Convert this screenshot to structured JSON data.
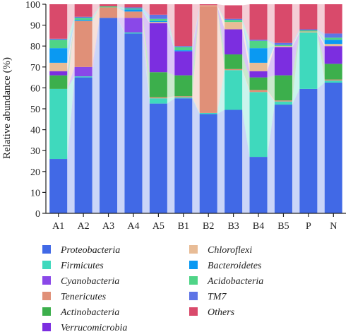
{
  "chart_data": {
    "type": "bar",
    "stacked": true,
    "title": "",
    "xlabel": "",
    "ylabel": "Relative abundance (%)",
    "ylim": [
      0,
      100
    ],
    "yticks": [
      0,
      10,
      20,
      30,
      40,
      50,
      60,
      70,
      80,
      90,
      100
    ],
    "categories": [
      "A1",
      "A2",
      "A3",
      "A4",
      "A5",
      "B1",
      "B2",
      "B3",
      "B4",
      "B5",
      "P",
      "N"
    ],
    "legend_placement": "bottom",
    "series": [
      {
        "name": "Proteobacteria",
        "color": "#4169e6",
        "values": [
          26,
          65,
          93.5,
          86,
          52.5,
          55,
          47.5,
          49.5,
          27,
          52,
          59.5,
          62.5
        ]
      },
      {
        "name": "Firmicutes",
        "color": "#3fd9bd",
        "values": [
          33.5,
          0.5,
          0,
          0.5,
          2.5,
          0.5,
          0.5,
          19,
          31,
          1.5,
          27,
          1
        ]
      },
      {
        "name": "Cyanobacteria",
        "color": "#8a48e8",
        "values": [
          0,
          4.5,
          0,
          7,
          0,
          0,
          0,
          0,
          0,
          0,
          0,
          0
        ]
      },
      {
        "name": "Tenericutes",
        "color": "#e09078",
        "values": [
          0,
          22,
          5,
          3,
          0.5,
          0.5,
          51,
          0.5,
          1,
          0.5,
          0,
          0.5
        ]
      },
      {
        "name": "Actinobacteria",
        "color": "#3caf4c",
        "values": [
          6.5,
          0,
          0,
          0,
          12,
          10,
          0,
          7,
          6,
          12,
          0,
          7.5
        ]
      },
      {
        "name": "Verrucomicrobia",
        "color": "#7c2ee0",
        "values": [
          2,
          0,
          0,
          0,
          23.5,
          11.5,
          0,
          12,
          3,
          13.5,
          0,
          8.5
        ]
      },
      {
        "name": "Chloroflexi",
        "color": "#e8bc96",
        "values": [
          4,
          0,
          0,
          0,
          0.5,
          0,
          0.5,
          3.5,
          4,
          0.5,
          0.5,
          1
        ]
      },
      {
        "name": "Bacteroidetes",
        "color": "#0a99f2",
        "values": [
          7,
          0.5,
          0,
          1,
          0.5,
          0.5,
          0,
          0,
          7,
          0,
          0,
          2
        ]
      },
      {
        "name": "Acidobacteria",
        "color": "#4fd487",
        "values": [
          4,
          1,
          0.5,
          0.5,
          1,
          1.5,
          0,
          1,
          3.5,
          0.5,
          0.5,
          1
        ]
      },
      {
        "name": "TM7",
        "color": "#5e74e6",
        "values": [
          0.5,
          0.5,
          0,
          0.5,
          2,
          0.5,
          0,
          0.5,
          0.5,
          1,
          0.5,
          2
        ]
      },
      {
        "name": "Others",
        "color": "#d94a6b",
        "values": [
          16.5,
          6,
          1,
          1.5,
          5,
          20,
          0.5,
          6.5,
          17,
          18.5,
          12,
          14
        ]
      }
    ]
  }
}
